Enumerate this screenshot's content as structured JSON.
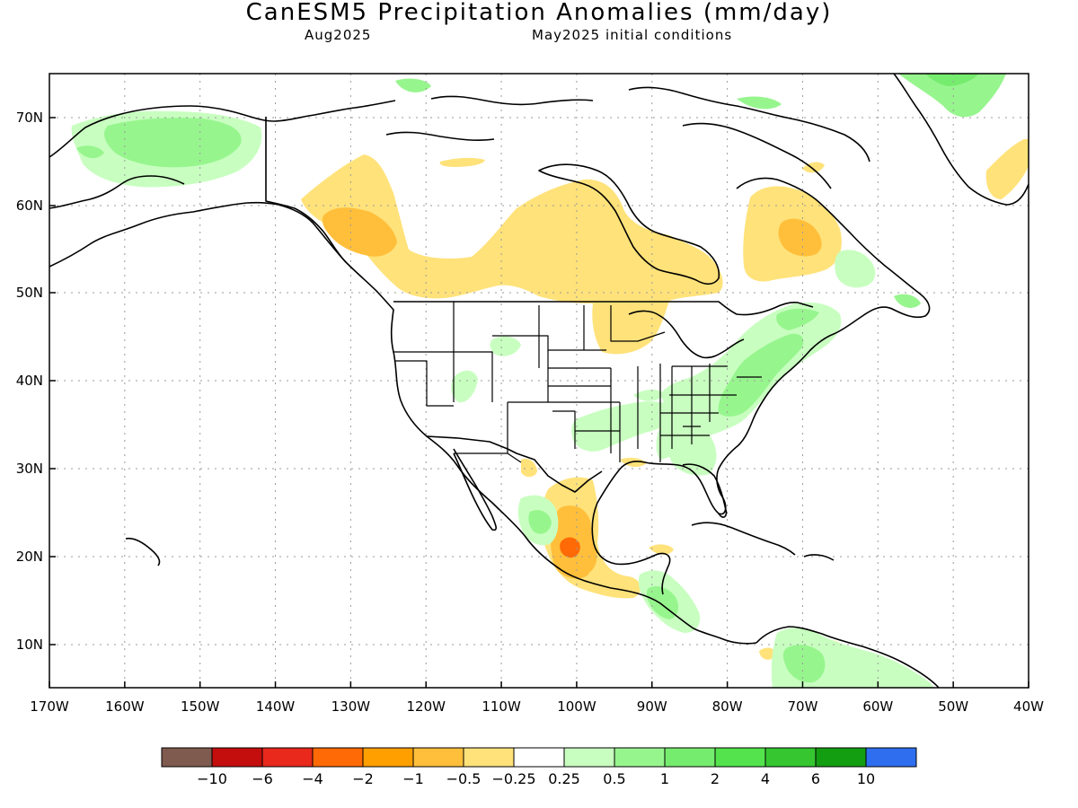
{
  "title": "CanESM5 Precipitation Anomalies (mm/day)",
  "valid_month": "Aug2025",
  "initial_conditions": "May2025 initial conditions",
  "map": {
    "lat_labels": [
      "70N",
      "60N",
      "50N",
      "40N",
      "30N",
      "20N",
      "10N"
    ],
    "lon_labels": [
      "170W",
      "160W",
      "150W",
      "140W",
      "130W",
      "120W",
      "110W",
      "100W",
      "90W",
      "80W",
      "70W",
      "60W",
      "50W",
      "40W"
    ]
  },
  "colorbar": {
    "colors": [
      "#7f5a4f",
      "#c40d0d",
      "#e8291c",
      "#ff6a06",
      "#ff9f00",
      "#ffbf3b",
      "#ffe27a",
      "#ffffff",
      "#c8ffc0",
      "#97f58e",
      "#76ec6e",
      "#54e34c",
      "#35c630",
      "#139e12",
      "#2f6fef"
    ],
    "labels": [
      "-10",
      "-6",
      "-4",
      "-2",
      "-1",
      "-0.5",
      "-0.25",
      "0.25",
      "0.5",
      "1",
      "2",
      "4",
      "6",
      "10"
    ]
  }
}
